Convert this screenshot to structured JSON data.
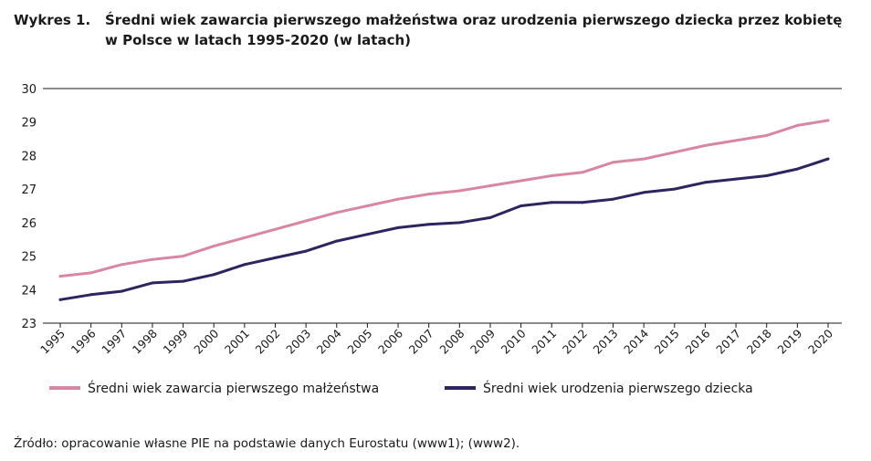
{
  "figure": {
    "label": "Wykres 1.",
    "title": "Średni wiek zawarcia pierwszego małżeństwa oraz urodzenia pierwszego dziecka przez kobietę w Polsce w latach 1995-2020 (w latach)",
    "source": "Źródło: opracowanie własne PIE na podstawie danych Eurostatu (www1); (www2)."
  },
  "chart_data": {
    "type": "line",
    "title": "Średni wiek zawarcia pierwszego małżeństwa oraz urodzenia pierwszego dziecka przez kobietę w Polsce w latach 1995-2020 (w latach)",
    "xlabel": "",
    "ylabel": "",
    "ylim": [
      23,
      30
    ],
    "yticks": [
      "23",
      "24",
      "25",
      "26",
      "27",
      "28",
      "29",
      "30"
    ],
    "x": [
      "1995",
      "1996",
      "1997",
      "1998",
      "1999",
      "2000",
      "2001",
      "2002",
      "2003",
      "2004",
      "2005",
      "2006",
      "2007",
      "2008",
      "2009",
      "2010",
      "2011",
      "2012",
      "2013",
      "2014",
      "2015",
      "2016",
      "2017",
      "2018",
      "2019",
      "2020"
    ],
    "grid": "top line only",
    "legend_position": "bottom",
    "series": [
      {
        "name": "Średni wiek zawarcia pierwszego małżeństwa",
        "color": "#d986a5",
        "values": [
          24.4,
          24.5,
          24.75,
          24.9,
          25.0,
          25.3,
          25.55,
          25.8,
          26.05,
          26.3,
          26.5,
          26.7,
          26.85,
          26.95,
          27.1,
          27.25,
          27.4,
          27.5,
          27.8,
          27.9,
          28.1,
          28.3,
          28.45,
          28.6,
          28.9,
          29.05
        ]
      },
      {
        "name": "Średni wiek urodzenia pierwszego dziecka",
        "color": "#2e2560",
        "values": [
          23.7,
          23.85,
          23.95,
          24.2,
          24.25,
          24.45,
          24.75,
          24.95,
          25.15,
          25.45,
          25.65,
          25.85,
          25.95,
          26.0,
          26.15,
          26.5,
          26.6,
          26.6,
          26.7,
          26.9,
          27.0,
          27.2,
          27.3,
          27.4,
          27.6,
          27.9
        ]
      }
    ]
  }
}
